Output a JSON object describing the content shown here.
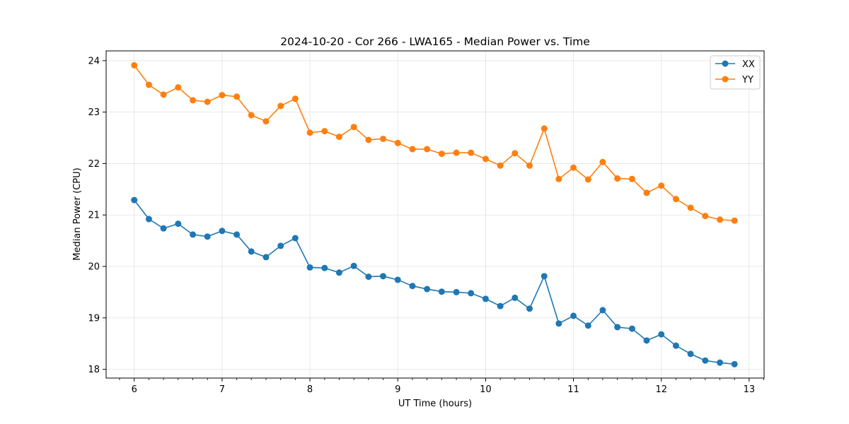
{
  "chart_data": {
    "type": "line",
    "title": "2024-10-20 - Cor 266 - LWA165 - Median Power vs. Time",
    "xlabel": "UT Time (hours)",
    "ylabel": "Median Power (CPU)",
    "xlim": [
      5.68,
      13.17
    ],
    "ylim": [
      17.83,
      24.19
    ],
    "xticks": [
      6,
      7,
      8,
      9,
      10,
      11,
      12,
      13
    ],
    "yticks": [
      18,
      19,
      20,
      21,
      22,
      23,
      24
    ],
    "grid": true,
    "legend_position": "top-right",
    "x": [
      6.0,
      6.167,
      6.333,
      6.5,
      6.667,
      6.833,
      7.0,
      7.167,
      7.333,
      7.5,
      7.667,
      7.833,
      8.0,
      8.167,
      8.333,
      8.5,
      8.667,
      8.833,
      9.0,
      9.167,
      9.333,
      9.5,
      9.667,
      9.833,
      10.0,
      10.167,
      10.333,
      10.5,
      10.667,
      10.833,
      11.0,
      11.167,
      11.333,
      11.5,
      11.667,
      11.833,
      12.0,
      12.167,
      12.333,
      12.5,
      12.667,
      12.833
    ],
    "series": [
      {
        "name": "XX",
        "color": "#1f77b4",
        "values": [
          21.29,
          20.92,
          20.74,
          20.83,
          20.62,
          20.58,
          20.69,
          20.62,
          20.29,
          20.18,
          20.4,
          20.55,
          19.98,
          19.97,
          19.88,
          20.01,
          19.8,
          19.81,
          19.74,
          19.62,
          19.56,
          19.51,
          19.5,
          19.48,
          19.37,
          19.23,
          19.39,
          19.18,
          19.81,
          18.89,
          19.04,
          18.85,
          19.15,
          18.82,
          18.79,
          18.56,
          18.68,
          18.46,
          18.3,
          18.17,
          18.13,
          18.1
        ]
      },
      {
        "name": "YY",
        "color": "#ff7f0e",
        "values": [
          23.91,
          23.53,
          23.34,
          23.48,
          23.23,
          23.2,
          23.33,
          23.3,
          22.94,
          22.82,
          23.12,
          23.26,
          22.6,
          22.63,
          22.52,
          22.71,
          22.46,
          22.48,
          22.4,
          22.28,
          22.28,
          22.19,
          22.21,
          22.21,
          22.09,
          21.96,
          22.2,
          21.96,
          22.68,
          21.7,
          21.92,
          21.69,
          22.03,
          21.71,
          21.7,
          21.43,
          21.57,
          21.31,
          21.14,
          20.98,
          20.91,
          20.89
        ]
      }
    ]
  }
}
